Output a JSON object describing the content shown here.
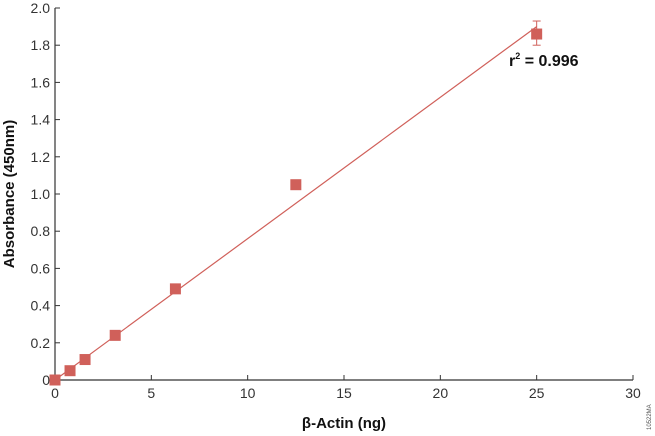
{
  "chart_data": {
    "type": "scatter",
    "xlabel": "β-Actin (ng)",
    "ylabel": "Absorbance (450nm)",
    "xlim": [
      0,
      30
    ],
    "ylim": [
      0,
      2.0
    ],
    "xticks": [
      "0",
      "5",
      "10",
      "15",
      "20",
      "25",
      "30"
    ],
    "yticks": [
      "0",
      "0.2",
      "0.4",
      "0.6",
      "0.8",
      "1.0",
      "1.2",
      "1.4",
      "1.6",
      "1.8",
      "2.0"
    ],
    "grid": false,
    "points": [
      {
        "x": 0,
        "y": 0
      },
      {
        "x": 0.78,
        "y": 0.05
      },
      {
        "x": 1.56,
        "y": 0.11
      },
      {
        "x": 3.125,
        "y": 0.24
      },
      {
        "x": 6.25,
        "y": 0.49
      },
      {
        "x": 12.5,
        "y": 1.05
      },
      {
        "x": 25,
        "y": 1.86,
        "err_low": 1.8,
        "err_high": 1.93
      }
    ],
    "fit_line": {
      "x": [
        0,
        25
      ],
      "y": [
        0,
        1.9
      ]
    },
    "annotation": {
      "text_base": "r",
      "text_sup": "2",
      "text_rest": " = 0.996"
    },
    "color": "#d0605a",
    "watermark": "10522MA"
  }
}
